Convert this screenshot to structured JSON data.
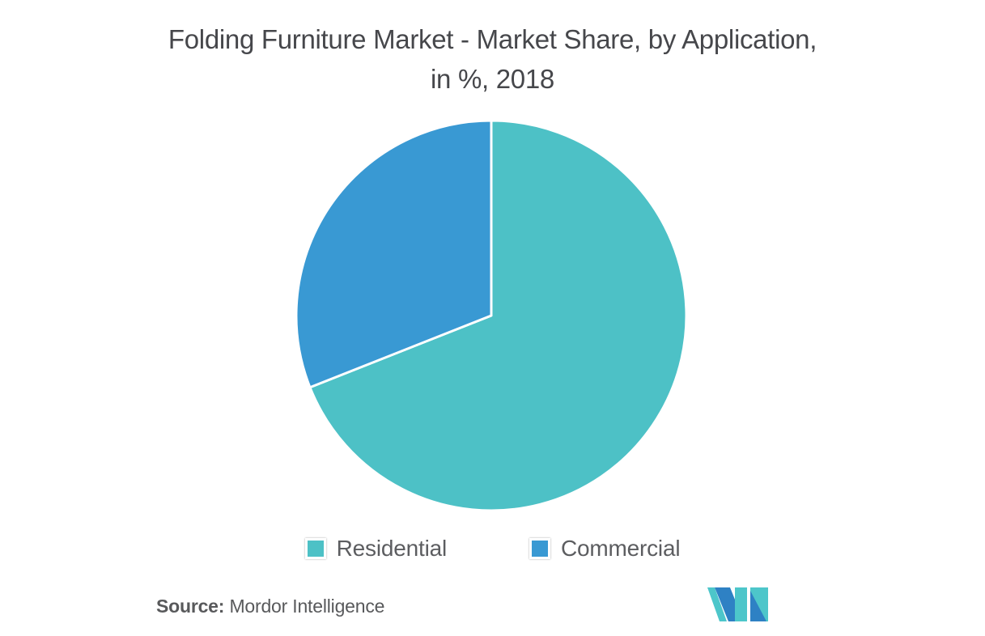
{
  "title": {
    "line1": "Folding Furniture Market - Market Share, by Application,",
    "line2": "in %, 2018",
    "color": "#46474B"
  },
  "chart_data": {
    "type": "pie",
    "title": "Folding Furniture Market - Market Share, by Application, in %, 2018",
    "categories": [
      "Residential",
      "Commercial"
    ],
    "values": [
      69,
      31
    ],
    "unit": "%",
    "year": "2018",
    "colors": [
      "#4DC1C6",
      "#3999D3"
    ],
    "start_angle": "12-oclock",
    "direction": "clockwise",
    "slice_border_color": "#ffffff",
    "slice_border_width": 3,
    "data_labels": false,
    "legend_position": "bottom"
  },
  "legend": {
    "items": [
      {
        "label": "Residential",
        "color": "#4DC1C6"
      },
      {
        "label": "Commercial",
        "color": "#3999D3"
      }
    ]
  },
  "source": {
    "prefix": "Source:",
    "text": "Mordor Intelligence"
  },
  "logo": {
    "name": "mordor-intelligence-logo",
    "teal": "#4DC6CA",
    "blue": "#2E81C4"
  }
}
